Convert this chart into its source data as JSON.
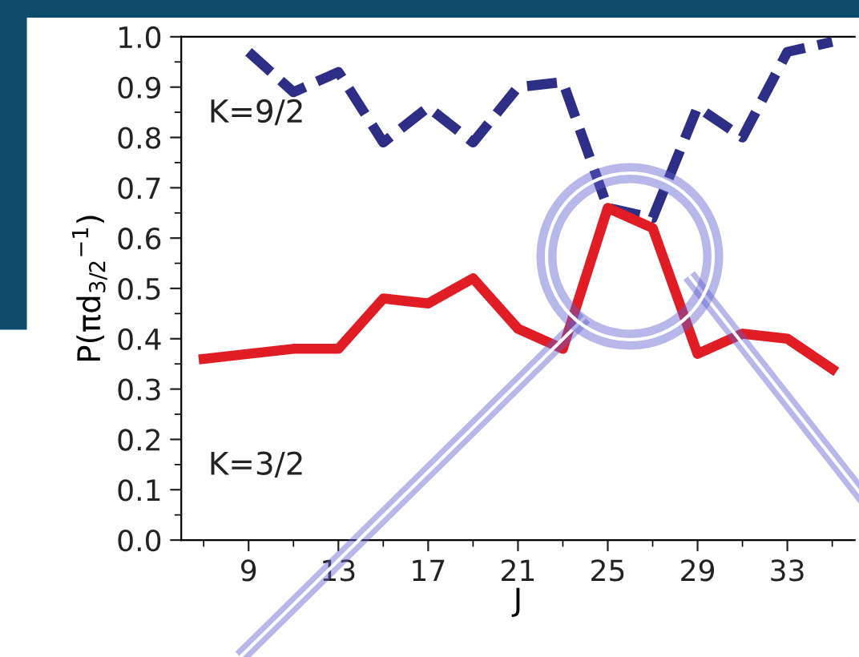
{
  "chart_data": {
    "type": "line",
    "xlabel": "J",
    "ylabel": "P(πd$_{3/2}$$^{−1}$)",
    "xlim": [
      6,
      36
    ],
    "xticks": [
      9,
      13,
      17,
      21,
      25,
      29,
      33
    ],
    "ylim": [
      0,
      1
    ],
    "yticks": [
      {
        "value": 0,
        "label": "0.0"
      },
      0.1,
      0.2,
      0.3,
      0.4,
      0.5,
      0.6,
      0.7,
      0.8,
      0.9,
      {
        "value": 1,
        "label": "1.0"
      }
    ],
    "grid": false,
    "legend": false,
    "series": [
      {
        "name": "K=9/2",
        "color": "#2e2e86",
        "line_style": "dashed",
        "x": [
          9,
          11,
          13,
          15,
          17,
          19,
          21,
          23,
          25,
          27,
          29,
          31,
          33,
          35
        ],
        "values": [
          0.97,
          0.89,
          0.93,
          0.79,
          0.86,
          0.79,
          0.9,
          0.91,
          0.66,
          0.64,
          0.86,
          0.8,
          0.97,
          0.99
        ]
      },
      {
        "name": "K=3/2",
        "color": "#e01c24",
        "line_style": "solid",
        "x": [
          7,
          9,
          11,
          13,
          15,
          17,
          19,
          21,
          23,
          25,
          27,
          29,
          31,
          33,
          35
        ],
        "values": [
          0.36,
          0.37,
          0.38,
          0.38,
          0.48,
          0.47,
          0.52,
          0.42,
          0.38,
          0.66,
          0.62,
          0.37,
          0.41,
          0.4,
          0.34
        ]
      }
    ]
  }
}
